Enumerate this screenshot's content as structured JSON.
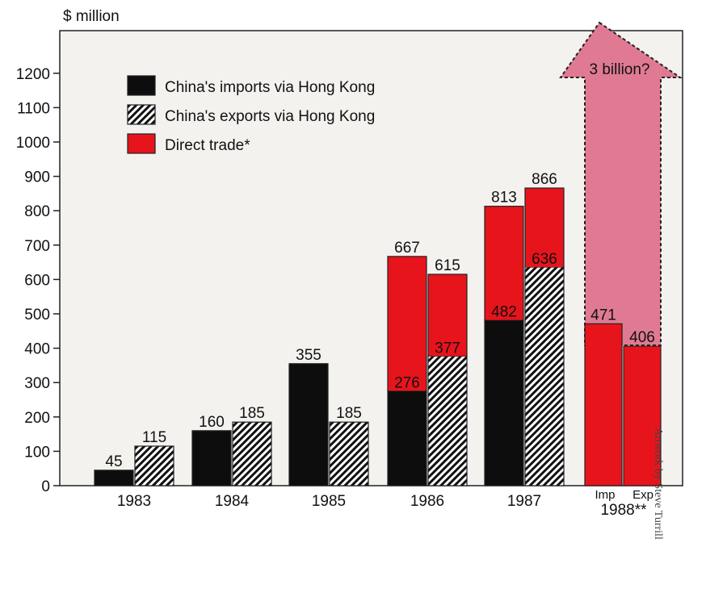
{
  "chart_data": {
    "type": "bar",
    "ylabel": "$ million",
    "ylim": [
      0,
      1200
    ],
    "y_ticks": [
      0,
      100,
      200,
      300,
      400,
      500,
      600,
      700,
      800,
      900,
      1000,
      1100,
      1200
    ],
    "grid": false,
    "legend_position": "top-left",
    "legend": [
      {
        "key": "imports",
        "label": "China's imports via Hong Kong",
        "fill": "solid-black"
      },
      {
        "key": "exports",
        "label": "China's exports via Hong Kong",
        "fill": "hatched"
      },
      {
        "key": "direct",
        "label": "Direct trade*",
        "fill": "red"
      }
    ],
    "years": [
      {
        "label": "1983",
        "imports": {
          "via_hk": 45,
          "total": 45,
          "top_label": "45"
        },
        "exports": {
          "via_hk": 115,
          "total": 115,
          "top_label": "115"
        }
      },
      {
        "label": "1984",
        "imports": {
          "via_hk": 160,
          "total": 160,
          "top_label": "160"
        },
        "exports": {
          "via_hk": 185,
          "total": 185,
          "top_label": "185"
        }
      },
      {
        "label": "1985",
        "imports": {
          "via_hk": 355,
          "total": 355,
          "top_label": "355"
        },
        "exports": {
          "via_hk": 185,
          "total": 185,
          "top_label": "185"
        }
      },
      {
        "label": "1986",
        "imports": {
          "via_hk": 276,
          "total": 667,
          "top_label": "667",
          "inner_label": "276"
        },
        "exports": {
          "via_hk": 377,
          "total": 615,
          "top_label": "615",
          "inner_label": "377"
        }
      },
      {
        "label": "1987",
        "imports": {
          "via_hk": 482,
          "total": 813,
          "top_label": "813",
          "inner_label": "482"
        },
        "exports": {
          "via_hk": 636,
          "total": 866,
          "top_label": "866",
          "inner_label": "636"
        }
      }
    ],
    "year_1988": {
      "label": "1988**",
      "imports": {
        "label": "Imp",
        "direct": 471,
        "top_label": "471"
      },
      "exports": {
        "label": "Exp",
        "direct": 406,
        "top_label": "406"
      },
      "projection_label": "3 billion?"
    },
    "colors": {
      "imports": "#0d0d0d",
      "direct": "#e8141c",
      "arrow": "#e07a92",
      "plot_bg": "#f3f2ef",
      "axis": "#222222"
    }
  },
  "credit": "Artwork by Steve Turrill"
}
